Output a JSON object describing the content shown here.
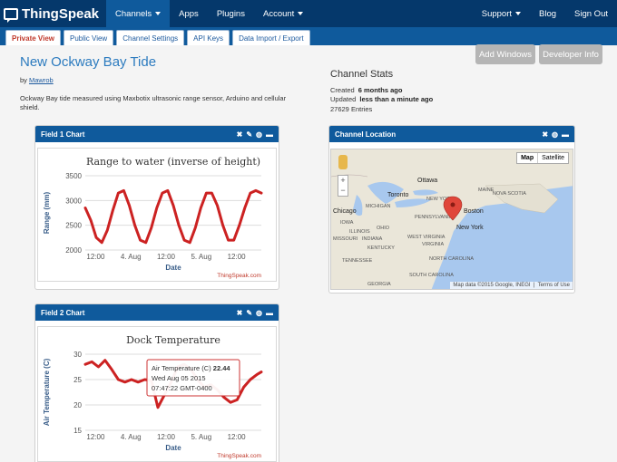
{
  "nav": {
    "brand": "ThingSpeak",
    "items": [
      {
        "label": "Channels",
        "caret": true,
        "active": true
      },
      {
        "label": "Apps"
      },
      {
        "label": "Plugins"
      },
      {
        "label": "Account",
        "caret": true
      }
    ],
    "right": [
      {
        "label": "Support",
        "caret": true
      },
      {
        "label": "Blog"
      },
      {
        "label": "Sign Out"
      }
    ]
  },
  "tabs": [
    "Private View",
    "Public View",
    "Channel Settings",
    "API Keys",
    "Data Import / Export"
  ],
  "channel": {
    "title": "New Ockway Bay Tide",
    "by_prefix": "by",
    "author": "Mawrob",
    "description": "Ockway Bay tide measured using Maxbotix ultrasonic range sensor, Arduino and cellular shield."
  },
  "buttons": {
    "add_windows": "Add Windows",
    "developer_info": "Developer Info"
  },
  "stats": {
    "title": "Channel Stats",
    "created_label": "Created",
    "created_value": "6 months ago",
    "updated_label": "Updated",
    "updated_value": "less than a minute ago",
    "entries": "27629 Entries"
  },
  "panels": {
    "field1": "Field 1 Chart",
    "field2": "Field 2 Chart",
    "location": "Channel Location"
  },
  "credit": "ThingSpeak.com",
  "map": {
    "btn_map": "Map",
    "btn_satellite": "Satellite",
    "footer": "Map data ©2015 Google, INEGI",
    "terms": "Terms of Use",
    "labels": [
      "Ottawa",
      "Toronto",
      "Chicago",
      "NEW YORK",
      "MAINE",
      "NOVA SCOTIA",
      "Boston",
      "New York",
      "PENNSYLVANIA",
      "OHIO",
      "ILLINOIS",
      "INDIANA",
      "WEST VIRGINIA",
      "VIRGINIA",
      "KENTUCKY",
      "TENNESSEE",
      "NORTH CAROLINA",
      "SOUTH CAROLINA",
      "MISSOURI",
      "IOWA",
      "MICHIGAN",
      "GEORGIA"
    ]
  },
  "tooltip": {
    "label": "Air Temperature (C)",
    "value": "22.44",
    "date": "Wed Aug 05 2015",
    "time": "07:47:22 GMT-0400"
  },
  "chart_data": [
    {
      "type": "line",
      "title": "Range to water (inverse of height)",
      "ylabel": "Range (mm)",
      "xlabel": "Date",
      "ylim": [
        2000,
        3500
      ],
      "yticks": [
        2000,
        2500,
        3000,
        3500
      ],
      "xticks": [
        "12:00",
        "4. Aug",
        "12:00",
        "5. Aug",
        "12:00"
      ],
      "color": "#cc2222",
      "series": [
        {
          "x": [
            0.0,
            0.25,
            0.5,
            0.75,
            1.0,
            1.25,
            1.5,
            1.75,
            2.0,
            2.25,
            2.5,
            2.75,
            3.0,
            3.25,
            3.5,
            3.75,
            4.0,
            4.25,
            4.5,
            4.75,
            5.0,
            5.25,
            5.5,
            5.75,
            6.0,
            6.25,
            6.5,
            6.75,
            7.0,
            7.25,
            7.5,
            7.75,
            8.0
          ],
          "y": [
            2850,
            2600,
            2250,
            2150,
            2400,
            2800,
            3150,
            3200,
            2900,
            2500,
            2200,
            2150,
            2450,
            2850,
            3150,
            3200,
            2900,
            2500,
            2200,
            2150,
            2450,
            2850,
            3150,
            3150,
            2900,
            2500,
            2200,
            2200,
            2500,
            2850,
            3150,
            3200,
            3150
          ]
        }
      ]
    },
    {
      "type": "line",
      "title": "Dock Temperature",
      "ylabel": "Air Temperature (C)",
      "xlabel": "Date",
      "ylim": [
        15,
        30
      ],
      "yticks": [
        15,
        20,
        25,
        30
      ],
      "xticks": [
        "12:00",
        "4. Aug",
        "12:00",
        "5. Aug",
        "12:00"
      ],
      "color": "#cc2222",
      "series": [
        {
          "x": [
            0.0,
            0.3,
            0.6,
            0.9,
            1.2,
            1.5,
            1.8,
            2.1,
            2.4,
            2.7,
            3.0,
            3.3,
            3.6,
            3.9,
            4.2,
            4.5,
            4.8,
            5.1,
            5.4,
            5.7,
            6.0,
            6.3,
            6.6,
            6.9,
            7.2,
            7.5,
            7.8,
            8.0
          ],
          "y": [
            28,
            28.5,
            27.5,
            28.8,
            27.0,
            25.0,
            24.5,
            25.0,
            24.5,
            25.0,
            24.8,
            19.5,
            22.0,
            24.5,
            27.5,
            28.0,
            27.0,
            25.0,
            23.5,
            24.0,
            23.0,
            21.5,
            20.5,
            21.0,
            23.5,
            25.0,
            26.0,
            26.5
          ]
        }
      ]
    }
  ]
}
